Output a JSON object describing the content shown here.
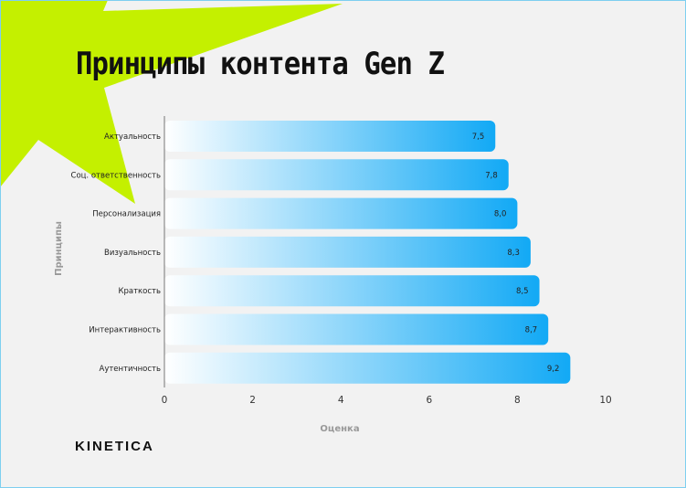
{
  "title": "Принципы контента Gen Z",
  "logo": "KINETICA",
  "colors": {
    "accent_green": "#c4f000",
    "bar_end": "#12a9f5",
    "bar_start": "#ffffff"
  },
  "chart_data": {
    "type": "bar",
    "orientation": "horizontal",
    "title": "Принципы контента Gen Z",
    "xlabel": "Оценка",
    "ylabel": "Принципы",
    "xlim": [
      0,
      10
    ],
    "xticks": [
      0,
      2,
      4,
      6,
      8,
      10
    ],
    "xtick_labels": [
      "0",
      "2",
      "4",
      "6",
      "8",
      "10"
    ],
    "grid": false,
    "categories": [
      "Актуальность",
      "Соц. ответственность",
      "Персонализация",
      "Визуальность",
      "Краткость",
      "Интерактивность",
      "Аутентичность"
    ],
    "values": [
      7.5,
      7.8,
      8.0,
      8.3,
      8.5,
      8.7,
      9.2
    ],
    "data_labels": [
      "7,5",
      "7,8",
      "8,0",
      "8,3",
      "8,5",
      "8,7",
      "9,2"
    ]
  }
}
